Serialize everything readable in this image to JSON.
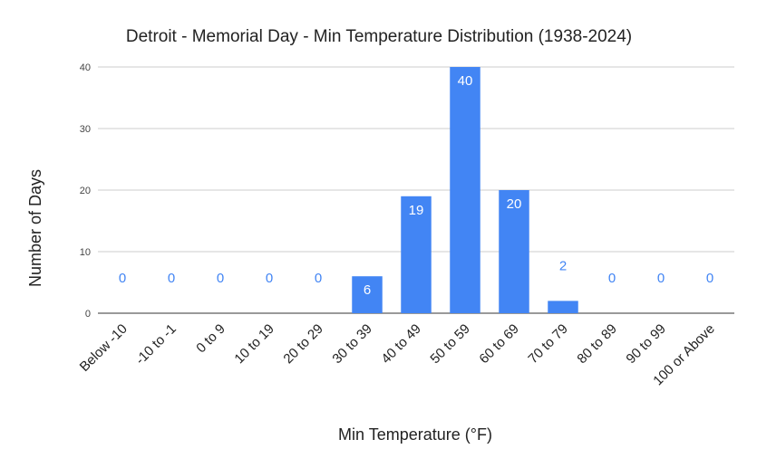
{
  "chart_data": {
    "type": "bar",
    "title": "Detroit - Memorial Day - Min Temperature Distribution (1938-2024)",
    "xlabel": "Min Temperature (°F)",
    "ylabel": "Number of Days",
    "categories": [
      "Below -10",
      "-10 to -1",
      "0 to 9",
      "10 to 19",
      "20 to 29",
      "30 to 39",
      "40 to 49",
      "50 to 59",
      "60 to 69",
      "70 to 79",
      "80 to 89",
      "90 to 99",
      "100 or Above"
    ],
    "values": [
      0,
      0,
      0,
      0,
      0,
      6,
      19,
      40,
      20,
      2,
      0,
      0,
      0
    ],
    "ylim": [
      0,
      40
    ],
    "yticks": [
      0,
      10,
      20,
      30,
      40
    ],
    "grid": true,
    "legend": "none",
    "colors": {
      "bar": "#4285f4",
      "label_inside": "#ffffff",
      "label_outside": "#4285f4",
      "grid": "#cccccc"
    }
  }
}
